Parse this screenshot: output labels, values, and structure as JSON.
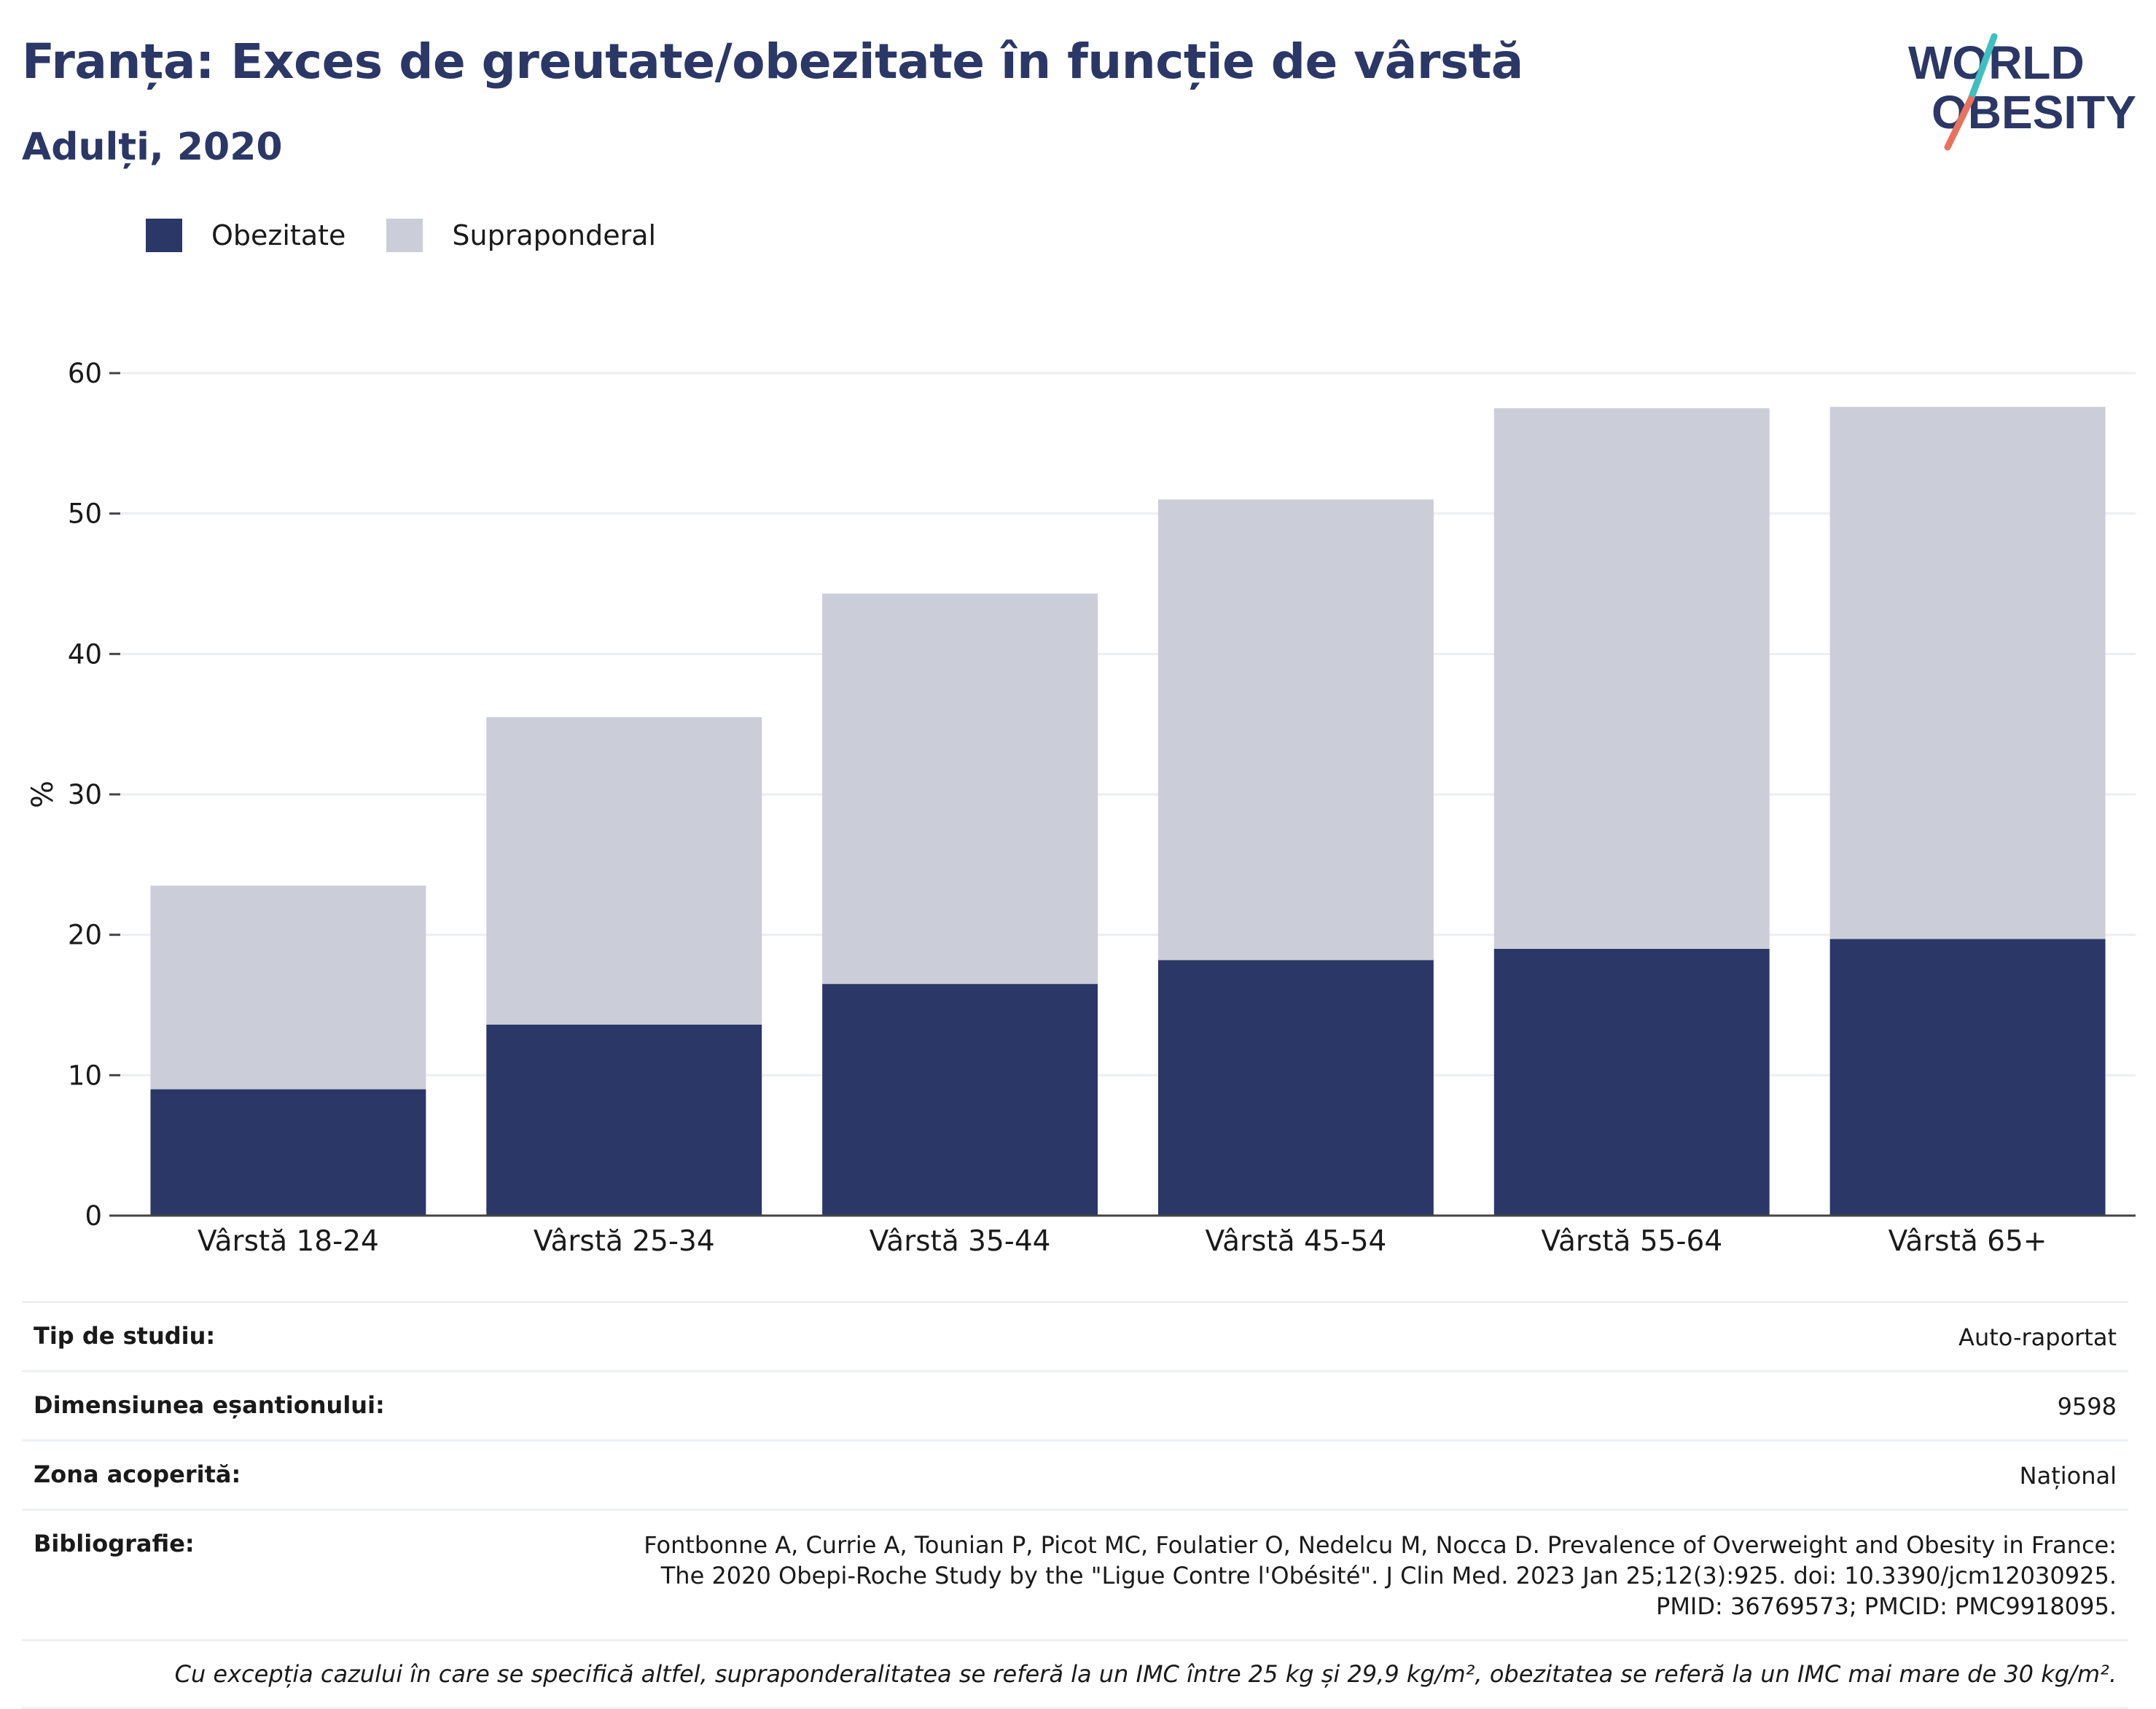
{
  "header": {
    "title": "Franța: Exces de greutate/obezitate în funcție de vârstă",
    "subtitle": "Adulți, 2020"
  },
  "logo": {
    "line1": "WORLD",
    "line2": "OBESITY",
    "colors": {
      "text": "#2b3766",
      "slash_top": "#3fbfc0",
      "slash_bottom": "#e9725f"
    }
  },
  "legend": {
    "items": [
      {
        "label": "Obezitate",
        "color": "#2b3766"
      },
      {
        "label": "Supraponderal",
        "color": "#cbcdd9"
      }
    ]
  },
  "chart_data": {
    "type": "bar",
    "stacked": true,
    "categories": [
      "Vârstă 18-24",
      "Vârstă 25-34",
      "Vârstă 35-44",
      "Vârstă 45-54",
      "Vârstă 55-64",
      "Vârstă 65+"
    ],
    "series": [
      {
        "name": "Obezitate",
        "color": "#2b3766",
        "values": [
          9.0,
          13.6,
          16.5,
          18.2,
          19.0,
          19.7
        ]
      },
      {
        "name": "Supraponderal",
        "color": "#cbcdd9",
        "values": [
          14.5,
          21.9,
          27.8,
          32.8,
          38.5,
          37.9
        ]
      }
    ],
    "ylabel": "%",
    "ylim": [
      0,
      60
    ],
    "yticks": [
      0,
      10,
      20,
      30,
      40,
      50,
      60
    ],
    "grid": true,
    "legend_position": "top-left"
  },
  "info": {
    "rows": [
      {
        "key": "Tip de studiu:",
        "value": "Auto-raportat"
      },
      {
        "key": "Dimensiunea eșantionului:",
        "value": "9598"
      },
      {
        "key": "Zona acoperită:",
        "value": "Național"
      }
    ],
    "bibliography": {
      "key": "Bibliografie:",
      "value": "Fontbonne A, Currie A, Tounian P, Picot MC, Foulatier O, Nedelcu M, Nocca D. Prevalence of Overweight and Obesity in France: The 2020 Obepi-Roche Study by the \"Ligue Contre l'Obésité\". J Clin Med. 2023 Jan 25;12(3):925. doi: 10.3390/jcm12030925. PMID: 36769573; PMCID: PMC9918095."
    },
    "note": "Cu excepția cazului în care se specifică altfel, supraponderalitatea se referă la un IMC între 25 kg și 29,9 kg/m², obezitatea se referă la un IMC mai mare de 30 kg/m²."
  }
}
